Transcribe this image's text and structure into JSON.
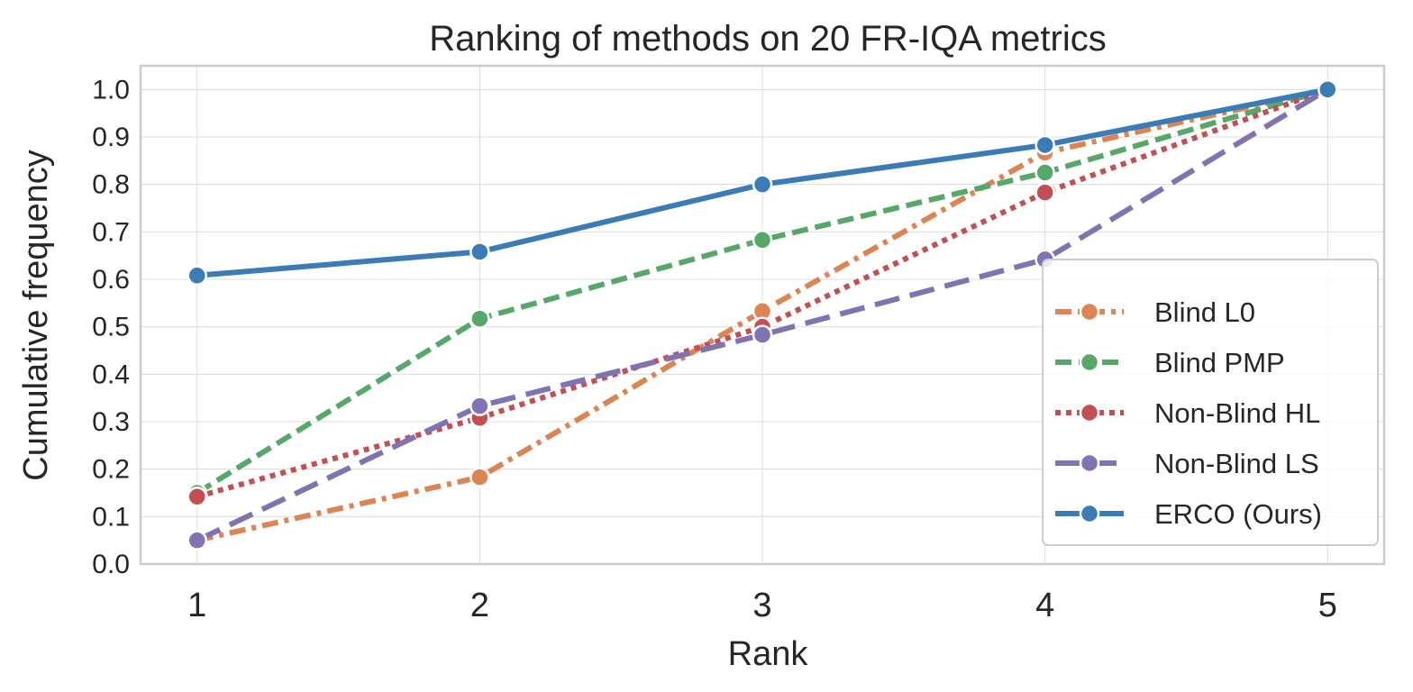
{
  "chart_data": {
    "type": "line",
    "title": "Ranking of methods on 20 FR-IQA metrics",
    "xlabel": "Rank",
    "ylabel": "Cumulative frequency",
    "x": [
      1,
      2,
      3,
      4,
      5
    ],
    "xlim": [
      0.8,
      5.2
    ],
    "ylim": [
      0.0,
      1.05
    ],
    "yticks": [
      "0.0",
      "0.1",
      "0.2",
      "0.3",
      "0.4",
      "0.5",
      "0.6",
      "0.7",
      "0.8",
      "0.9",
      "1.0"
    ],
    "xticks": [
      "1",
      "2",
      "3",
      "4",
      "5"
    ],
    "grid": true,
    "legend_position": "lower-right",
    "series": [
      {
        "name": "Blind L0",
        "values": [
          0.05,
          0.183,
          0.533,
          0.867,
          1.0
        ],
        "color": "#dd8452",
        "dash": "dashdot"
      },
      {
        "name": "Blind PMP",
        "values": [
          0.15,
          0.517,
          0.683,
          0.825,
          1.0
        ],
        "color": "#55a868",
        "dash": "dashed"
      },
      {
        "name": "Non-Blind HL",
        "values": [
          0.142,
          0.308,
          0.5,
          0.783,
          1.0
        ],
        "color": "#c44e52",
        "dash": "dotted"
      },
      {
        "name": "Non-Blind LS",
        "values": [
          0.05,
          0.333,
          0.483,
          0.642,
          1.0
        ],
        "color": "#8172b3",
        "dash": "longdash"
      },
      {
        "name": "ERCO (Ours)",
        "values": [
          0.608,
          0.658,
          0.8,
          0.883,
          1.0
        ],
        "color": "#3a7cb8",
        "dash": "solid"
      }
    ]
  }
}
